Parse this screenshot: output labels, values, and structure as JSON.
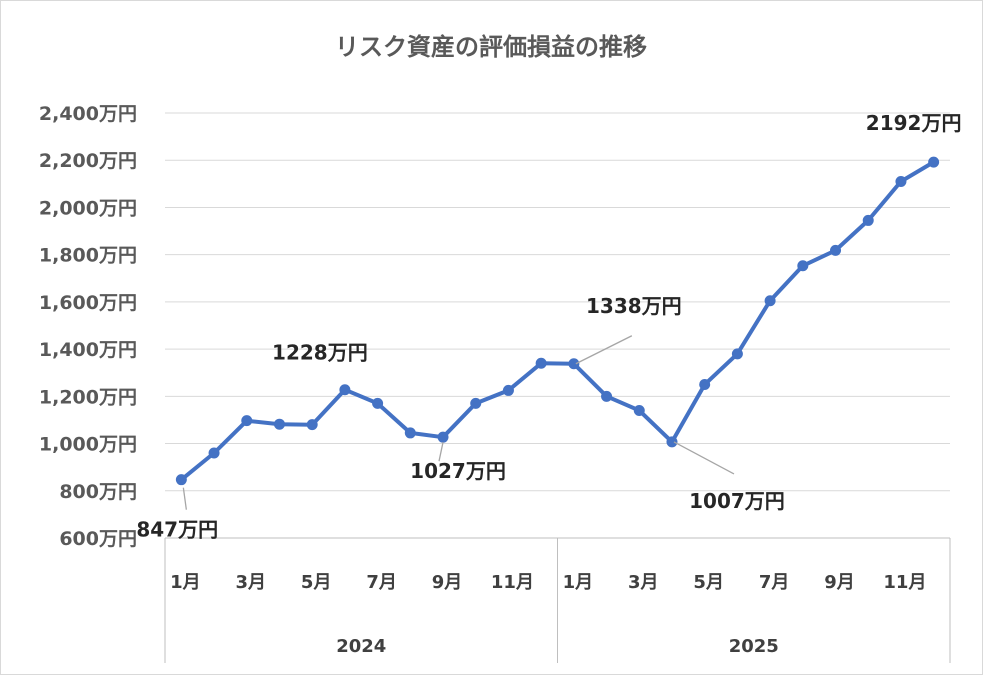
{
  "chart_data": {
    "type": "line",
    "title": "リスク資産の評価損益の推移",
    "xlabel": "",
    "ylabel": "",
    "ylim": [
      600,
      2400
    ],
    "y_ticks": [
      "600万円",
      "800万円",
      "1,000万円",
      "1,200万円",
      "1,400万円",
      "1,600万円",
      "1,800万円",
      "2,000万円",
      "2,200万円",
      "2,400万円"
    ],
    "y_tick_values": [
      600,
      800,
      1000,
      1200,
      1400,
      1600,
      1800,
      2000,
      2200,
      2400
    ],
    "x_tick_labels": [
      "1月",
      "3月",
      "5月",
      "7月",
      "9月",
      "11月",
      "1月",
      "3月",
      "5月",
      "7月",
      "9月",
      "11月"
    ],
    "years": [
      "2024",
      "2025"
    ],
    "grid": true,
    "legend": "none",
    "color": "#4472c4",
    "series": [
      {
        "values": [
          847,
          960,
          1097,
          1082,
          1080,
          1228,
          1170,
          1045,
          1027,
          1170,
          1225,
          1340,
          1338,
          1200,
          1140,
          1007,
          1250,
          1380,
          1605,
          1753,
          1818,
          1945,
          2110,
          2192
        ]
      }
    ],
    "data_labels": [
      {
        "index": 0,
        "text": "847万円"
      },
      {
        "index": 5,
        "text": "1228万円"
      },
      {
        "index": 8,
        "text": "1027万円"
      },
      {
        "index": 12,
        "text": "1338万円"
      },
      {
        "index": 15,
        "text": "1007万円"
      },
      {
        "index": 23,
        "text": "2192万円"
      }
    ]
  }
}
